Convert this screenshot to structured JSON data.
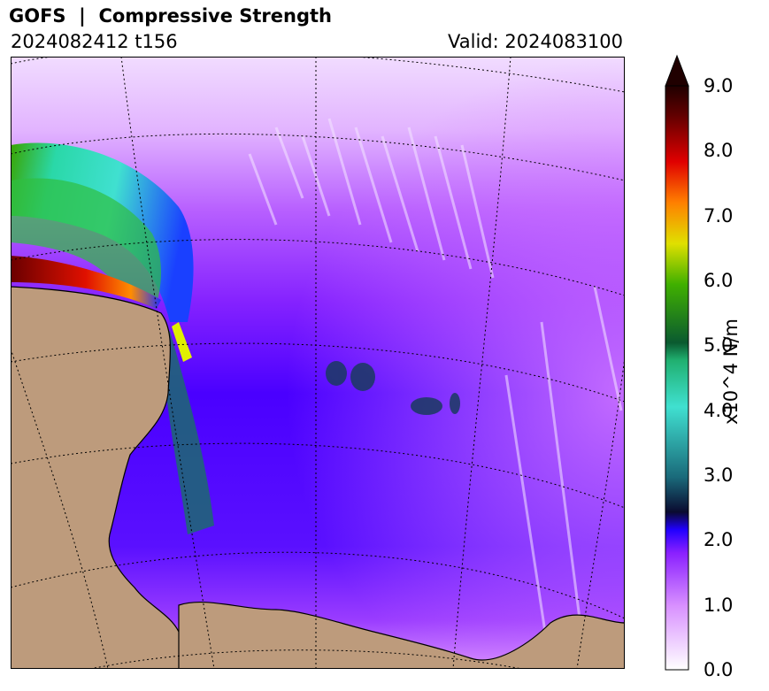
{
  "header": {
    "title": "GOFS  |  Compressive Strength",
    "init": "2024082412 t156",
    "valid": "Valid: 2024083100"
  },
  "colorbar": {
    "label": "x10^4 N/m",
    "ticks": [
      "0.0",
      "1.0",
      "2.0",
      "3.0",
      "4.0",
      "5.0",
      "6.0",
      "7.0",
      "8.0",
      "9.0"
    ],
    "min": 0,
    "max": 9,
    "extend": "max"
  },
  "colors": {
    "land": "#bd9b7c",
    "coast": "#000000",
    "grid": "#000000"
  }
}
